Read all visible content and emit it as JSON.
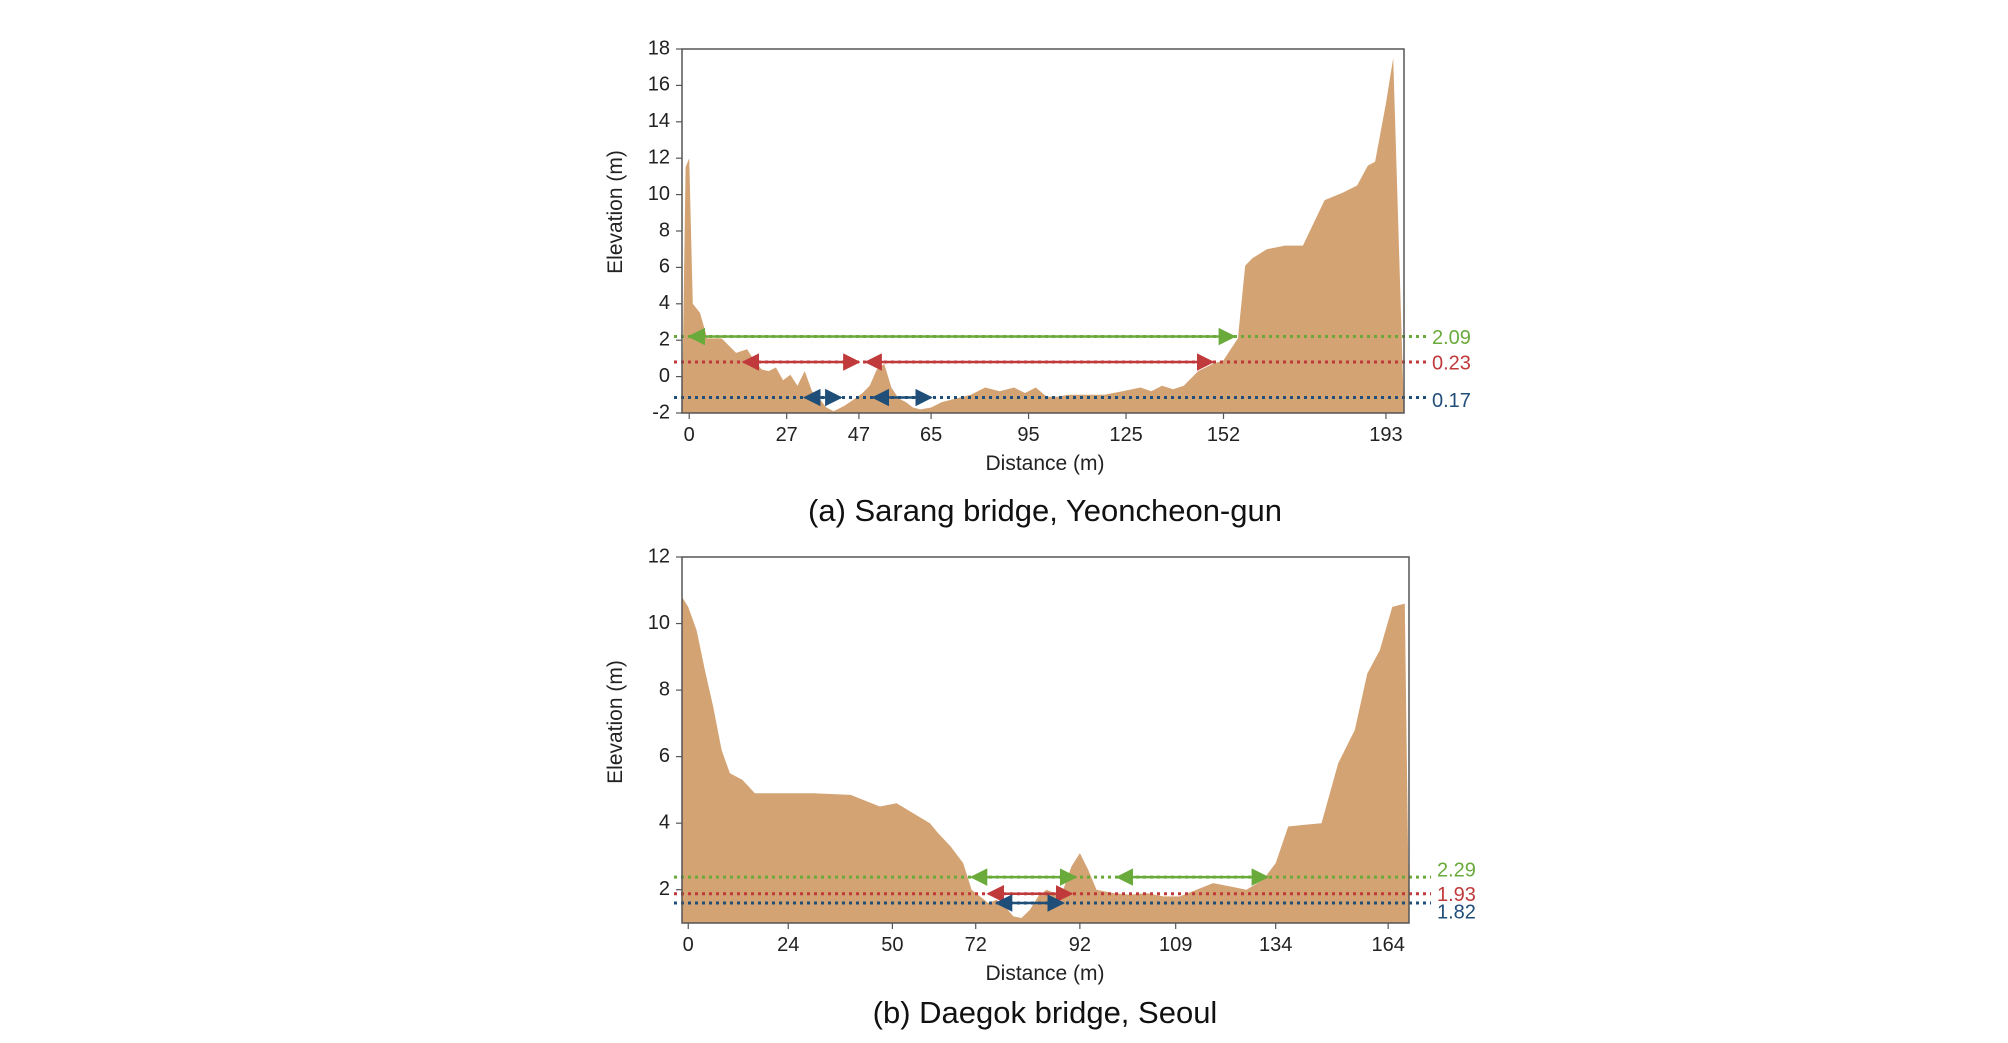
{
  "chart_data": [
    {
      "type": "area",
      "caption": "(a) Sarang bridge, Yeoncheon-gun",
      "xlabel": "Distance (m)",
      "ylabel": "Elevation (m)",
      "xlim": [
        -2,
        198
      ],
      "ylim": [
        -2,
        18
      ],
      "xticks": [
        0,
        27,
        47,
        65,
        95,
        125,
        152,
        193
      ],
      "xtick_positions": [
        0,
        27,
        47,
        67,
        94,
        121,
        148,
        193
      ],
      "yticks": [
        -2,
        0,
        2,
        4,
        6,
        8,
        10,
        12,
        14,
        16,
        18
      ],
      "fill_color": "#d4a373",
      "profile": {
        "x": [
          -2,
          -1,
          0,
          1,
          3,
          5,
          9,
          13,
          16,
          18,
          20,
          22,
          24,
          26,
          28,
          30,
          32,
          34,
          36,
          38,
          40,
          43,
          46,
          48,
          50,
          52,
          54,
          56,
          58,
          60,
          62,
          64,
          67,
          70,
          74,
          78,
          82,
          86,
          90,
          93,
          96,
          99,
          102,
          105,
          110,
          115,
          120,
          125,
          128,
          131,
          134,
          137,
          141,
          145,
          148,
          150,
          152,
          154,
          156,
          160,
          165,
          170,
          176,
          181,
          185,
          188,
          190,
          193,
          195,
          198
        ],
        "y": [
          -2,
          11.5,
          12,
          4,
          3.5,
          2.1,
          2.1,
          1.3,
          1.5,
          0.9,
          0.4,
          0.3,
          0.5,
          -0.2,
          0.1,
          -0.5,
          0.3,
          -0.8,
          -1.2,
          -1.7,
          -1.9,
          -1.6,
          -1.2,
          -0.9,
          -0.5,
          0.4,
          0.7,
          -0.6,
          -1.2,
          -1.4,
          -1.7,
          -1.8,
          -1.7,
          -1.4,
          -1.2,
          -1.0,
          -0.6,
          -0.8,
          -0.6,
          -0.9,
          -0.6,
          -1.1,
          -1.1,
          -1.0,
          -1.0,
          -1.0,
          -0.8,
          -0.6,
          -0.8,
          -0.5,
          -0.7,
          -0.5,
          0.3,
          0.7,
          0.9,
          1.5,
          2.1,
          6.1,
          6.5,
          7.0,
          7.2,
          7.2,
          9.7,
          10.1,
          10.5,
          11.6,
          11.8,
          15.0,
          17.5,
          -2
        ],
        "closed": true
      },
      "levels": [
        {
          "label": "2.09",
          "y": 2.2,
          "color": "#6aaa3a"
        },
        {
          "label": "0.23",
          "y": 0.8,
          "color": "#c0393b"
        },
        {
          "label": "0.17",
          "y": -1.15,
          "color": "#1f4e79"
        }
      ],
      "arrows": [
        {
          "level": 0,
          "x1": 0,
          "x2": 151
        },
        {
          "level": 1,
          "x1": 15,
          "x2": 47
        },
        {
          "level": 1,
          "x1": 49,
          "x2": 145
        },
        {
          "level": 2,
          "x1": 32,
          "x2": 42
        },
        {
          "level": 2,
          "x1": 51,
          "x2": 67
        }
      ]
    },
    {
      "type": "area",
      "caption": "(b) Daegok bridge, Seoul",
      "xlabel": "Distance (m)",
      "ylabel": "Elevation (m)",
      "xlim": [
        -1.5,
        173
      ],
      "ylim": [
        1,
        12
      ],
      "xticks": [
        0,
        24,
        50,
        72,
        92,
        109,
        134,
        164
      ],
      "xtick_positions": [
        0,
        24,
        49,
        69,
        94,
        117,
        141,
        168
      ],
      "yticks": [
        2,
        4,
        6,
        8,
        10,
        12
      ],
      "fill_color": "#d4a373",
      "profile": {
        "x": [
          -1.5,
          -1.5,
          0,
          2,
          4,
          6,
          8,
          10,
          13,
          16,
          18,
          20,
          30,
          39,
          44,
          46,
          50,
          54,
          58,
          60,
          63,
          66,
          68,
          70,
          72,
          74,
          76,
          78,
          80,
          82,
          84,
          86,
          88,
          90,
          92,
          94,
          96,
          98,
          102,
          106,
          110,
          114,
          118,
          122,
          126,
          130,
          134,
          138,
          141,
          144,
          148,
          152,
          156,
          160,
          163,
          166,
          169,
          172,
          173
        ],
        "y": [
          1,
          10.8,
          10.5,
          9.8,
          8.6,
          7.5,
          6.2,
          5.5,
          5.3,
          4.9,
          4.9,
          4.9,
          4.9,
          4.85,
          4.6,
          4.5,
          4.6,
          4.3,
          4.0,
          3.7,
          3.3,
          2.8,
          2.0,
          1.8,
          1.6,
          1.7,
          1.5,
          1.2,
          1.15,
          1.4,
          1.8,
          2.0,
          1.9,
          2.0,
          2.7,
          3.1,
          2.6,
          2.0,
          1.9,
          1.85,
          1.9,
          1.8,
          1.8,
          2.0,
          2.2,
          2.1,
          2.0,
          2.3,
          2.8,
          3.9,
          3.95,
          4.0,
          5.8,
          6.8,
          8.5,
          9.2,
          10.5,
          10.6,
          1
        ],
        "closed": true
      },
      "levels": [
        {
          "label": "2.29",
          "y": 2.38,
          "color": "#6aaa3a"
        },
        {
          "label": "1.93",
          "y": 1.88,
          "color": "#c0393b"
        },
        {
          "label": "1.82",
          "y": 1.6,
          "color": "#1f4e79"
        }
      ],
      "arrows": [
        {
          "level": 0,
          "x1": 68,
          "x2": 93
        },
        {
          "level": 0,
          "x1": 103,
          "x2": 139
        },
        {
          "level": 1,
          "x1": 72,
          "x2": 92
        },
        {
          "level": 2,
          "x1": 74,
          "x2": 90
        }
      ]
    }
  ]
}
